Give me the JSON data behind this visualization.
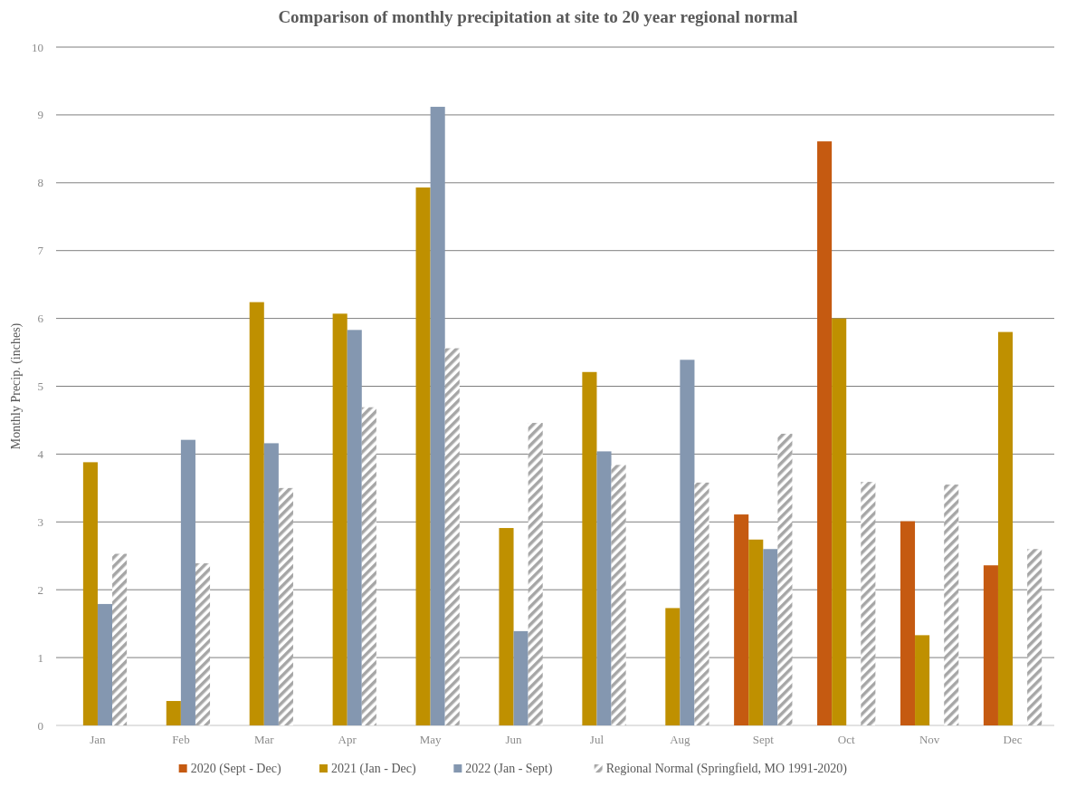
{
  "chart_data": {
    "type": "bar",
    "title": "Comparison of monthly precipitation at site to 20 year regional normal",
    "ylabel": "Monthly Precip. (inches)",
    "categories": [
      "Jan",
      "Feb",
      "Mar",
      "Apr",
      "May",
      "Jun",
      "Jul",
      "Aug",
      "Sept",
      "Oct",
      "Nov",
      "Dec"
    ],
    "series": [
      {
        "name": "2020 (Sept - Dec)",
        "color": "#c55a11",
        "values": [
          null,
          null,
          null,
          null,
          null,
          null,
          null,
          null,
          3.11,
          8.61,
          3.01,
          2.36
        ]
      },
      {
        "name": "2021 (Jan - Dec)",
        "color": "#bf9000",
        "values": [
          3.88,
          0.36,
          6.24,
          6.07,
          7.93,
          2.91,
          5.21,
          1.73,
          2.74,
          6.0,
          1.33,
          5.8
        ]
      },
      {
        "name": "2022 (Jan - Sept)",
        "color": "#8497b0",
        "values": [
          1.79,
          4.21,
          4.16,
          5.83,
          9.12,
          1.39,
          4.04,
          5.39,
          2.6,
          null,
          null,
          null
        ]
      },
      {
        "name": "Regional Normal (Springfield, MO 1991-2020)",
        "color": "#a6a6a6",
        "values": [
          2.53,
          2.39,
          3.5,
          4.69,
          5.56,
          4.46,
          3.84,
          3.58,
          4.3,
          3.59,
          3.55,
          2.6
        ]
      }
    ],
    "ylim": [
      0,
      10
    ],
    "yticks": [
      0,
      1,
      2,
      3,
      4,
      5,
      6,
      7,
      8,
      9,
      10
    ],
    "grid": "y",
    "legend": "bottom"
  }
}
